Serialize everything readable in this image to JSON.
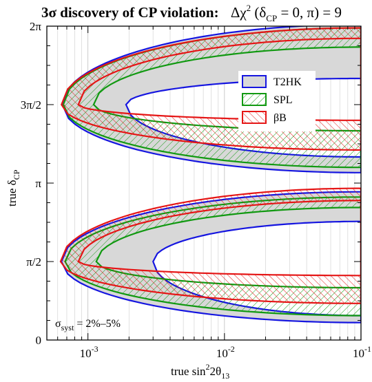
{
  "chart_data": {
    "type": "area",
    "title_bold": "3σ discovery of CP violation:",
    "title_math": {
      "delta_chi": "Δχ",
      "sq": "2",
      "open": " (δ",
      "sub": "CP",
      "rest": " = 0, π) = 9"
    },
    "xlabel": {
      "prefix": "true  sin",
      "sup": "2",
      "mid": "2θ",
      "sub": "13"
    },
    "ylabel": {
      "main": "true  δ",
      "sub": "CP"
    },
    "x_scale": "log",
    "xlim": [
      0.0005,
      0.1
    ],
    "ylim": [
      0,
      360
    ],
    "x_ticks": [
      {
        "value": 0.001,
        "base": "10",
        "exp": "-3"
      },
      {
        "value": 0.01,
        "base": "10",
        "exp": "-2"
      },
      {
        "value": 0.1,
        "base": "10",
        "exp": "-1"
      }
    ],
    "y_ticks": [
      {
        "value": 0,
        "label": "0"
      },
      {
        "value": 90,
        "label": "π/2"
      },
      {
        "value": 180,
        "label": "π"
      },
      {
        "value": 270,
        "label": "3π/2"
      },
      {
        "value": 360,
        "label": "2π"
      }
    ],
    "grid": "vertical minor lines",
    "legend_position": "top-right",
    "series": [
      {
        "name": "T2HK",
        "color": "#1515e0",
        "fill": "#d8d8d8",
        "pattern": "solid",
        "lobes": [
          {
            "cy": 270,
            "inner": {
              "x_tip": 0.0019,
              "x_end": 0.1,
              "half": [
                30,
                60
              ]
            },
            "outer": {
              "x_tip": 0.00065,
              "x_end": 0.1,
              "half": [
                92,
                78
              ]
            }
          },
          {
            "cy": 90,
            "inner": {
              "x_tip": 0.003,
              "x_end": 0.1,
              "half": [
                46,
                62
              ]
            },
            "outer": {
              "x_tip": 0.00064,
              "x_end": 0.1,
              "half": [
                80,
                70
              ]
            }
          }
        ]
      },
      {
        "name": "SPL",
        "color": "#119911",
        "fill": "none",
        "pattern": "hatch-left",
        "lobes": [
          {
            "cy": 270,
            "inner": {
              "x_tip": 0.0011,
              "x_end": 0.1,
              "half": [
                66,
                30
              ]
            },
            "outer": {
              "x_tip": 0.00066,
              "x_end": 0.1,
              "half": [
                88,
                72
              ]
            }
          },
          {
            "cy": 90,
            "inner": {
              "x_tip": 0.00115,
              "x_end": 0.1,
              "half": [
                62,
                30
              ]
            },
            "outer": {
              "x_tip": 0.00068,
              "x_end": 0.1,
              "half": [
                74,
                62
              ]
            }
          }
        ]
      },
      {
        "name": "βB",
        "color": "#e51515",
        "fill": "none",
        "pattern": "hatch-right",
        "lobes": [
          {
            "cy": 270,
            "inner": {
              "x_tip": 0.00085,
              "x_end": 0.1,
              "half": [
                76,
                18
              ]
            },
            "outer": {
              "x_tip": 0.00064,
              "x_end": 0.1,
              "half": [
                88,
                52
              ]
            }
          },
          {
            "cy": 90,
            "inner": {
              "x_tip": 0.00085,
              "x_end": 0.1,
              "half": [
                70,
                16
              ]
            },
            "outer": {
              "x_tip": 0.00063,
              "x_end": 0.1,
              "half": [
                84,
                48
              ]
            }
          }
        ]
      }
    ],
    "annotation": {
      "sigma": "σ",
      "sub": "syst",
      "rest": " = 2%–5%"
    }
  }
}
